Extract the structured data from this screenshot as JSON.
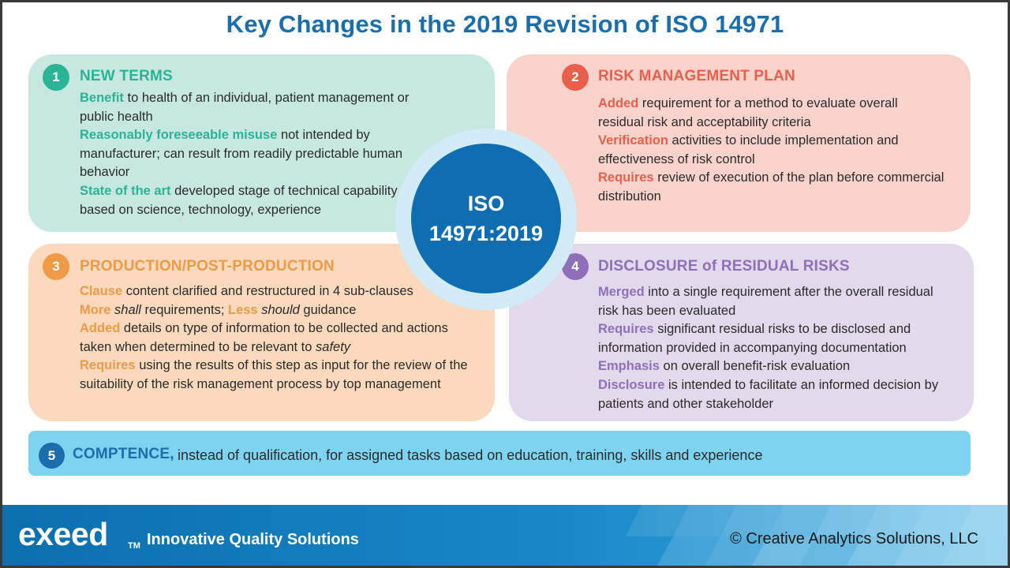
{
  "title": "Key Changes in the 2019 Revision of ISO 14971",
  "center": {
    "line1": "ISO",
    "line2": "14971:2019"
  },
  "colors": {
    "teal": "#2ab394",
    "coral": "#e8604c",
    "orange": "#ef9a46",
    "purple": "#8f70b8",
    "blue": "#1b6eac",
    "navy": "#0f6eb2"
  },
  "panels": {
    "new_terms": {
      "number": "1",
      "heading": "NEW TERMS",
      "items": [
        {
          "key": "Benefit",
          "text": " to health of an individual, patient management or public health"
        },
        {
          "key": "Reasonably foreseeable misuse",
          "text": " not intended by manufacturer; can result from readily predictable human behavior"
        },
        {
          "key": "State of the art",
          "text": " developed  stage of technical capability based on science, technology, experience"
        }
      ]
    },
    "risk_plan": {
      "number": "2",
      "heading": "RISK MANAGEMENT PLAN",
      "items": [
        {
          "key": "Added",
          "text": " requirement for a method to evaluate overall residual risk and acceptability criteria"
        },
        {
          "key": "Verification",
          "text": " activities to include implementation and effectiveness of risk control"
        },
        {
          "key": "Requires",
          "text": " review of execution of the plan before commercial distribution"
        }
      ]
    },
    "production": {
      "number": "3",
      "heading": "PRODUCTION/POST-PRODUCTION",
      "item1": {
        "key": "Clause",
        "text": " content clarified and restructured in 4 sub-clauses"
      },
      "item2": {
        "key1": "More",
        "it1": "shall",
        "mid": " requirements; ",
        "key2": "Less",
        "it2": "should",
        "end": " guidance"
      },
      "item3": {
        "key": "Added",
        "text": " details on type of information to be collected and actions taken when determined to be relevant to ",
        "italic": "safety"
      },
      "item4": {
        "key": "Requires",
        "text": " using the results of this step as input for the review of the suitability of the risk management process by top management"
      }
    },
    "disclosure": {
      "number": "4",
      "heading": "DISCLOSURE of RESIDUAL RISKS",
      "items": [
        {
          "key": "Merged",
          "text": " into a single requirement after the overall residual risk has been evaluated"
        },
        {
          "key": "Requires",
          "text": " significant residual risks to be disclosed and information provided in accompanying documentation"
        },
        {
          "key": "Emphasis",
          "text": "  on overall benefit-risk evaluation"
        },
        {
          "key": "Disclosure",
          "text": " is intended to facilitate an informed decision by patients and other stakeholder"
        }
      ]
    },
    "competence": {
      "number": "5",
      "heading": "COMPTENCE,",
      "text": "instead of qualification, for assigned tasks based on education, training, skills and experience"
    }
  },
  "footer": {
    "logo": "exeed",
    "trademark": "TM",
    "tagline": "Innovative Quality Solutions",
    "copyright": "© Creative Analytics Solutions, LLC"
  }
}
